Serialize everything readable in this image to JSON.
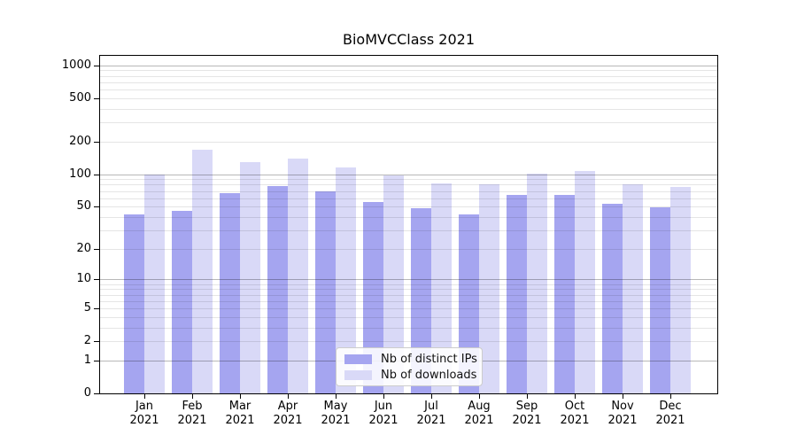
{
  "figure": {
    "background": "#ffffff"
  },
  "chart_data": {
    "type": "bar",
    "title": "BioMVCClass 2021",
    "categories": [
      "Jan 2021",
      "Feb 2021",
      "Mar 2021",
      "Apr 2021",
      "May 2021",
      "Jun 2021",
      "Jul 2021",
      "Aug 2021",
      "Sep 2021",
      "Oct 2021",
      "Nov 2021",
      "Dec 2021"
    ],
    "x_tick_months": [
      "Jan",
      "Feb",
      "Mar",
      "Apr",
      "May",
      "Jun",
      "Jul",
      "Aug",
      "Sep",
      "Oct",
      "Nov",
      "Dec"
    ],
    "x_tick_year": "2021",
    "series": [
      {
        "name": "Nb of distinct IPs",
        "color": "#a5a5f0",
        "values": [
          42,
          46,
          67,
          78,
          70,
          55,
          48,
          42,
          64,
          64,
          53,
          49
        ]
      },
      {
        "name": "Nb of downloads",
        "color": "#d9d9f7",
        "values": [
          100,
          167,
          129,
          140,
          116,
          97,
          83,
          80,
          102,
          108,
          81,
          77
        ]
      }
    ],
    "yscale": "log(1+y)",
    "yticks": [
      0,
      1,
      2,
      5,
      10,
      20,
      50,
      100,
      200,
      500,
      1000
    ],
    "ylim": [
      0,
      1240
    ],
    "grid": "horizontal minor log gridlines, darker lines at powers of ten, drawn over bars",
    "legend_position": "lower center inside plot"
  },
  "colors": {
    "axis_frame": "#000000",
    "decade_gridline": "#b8b8b8",
    "minor_gridline": "#e6e6e6",
    "tick_text": "#000000",
    "legend_border": "#cccccc",
    "legend_background": "#ffffff"
  }
}
